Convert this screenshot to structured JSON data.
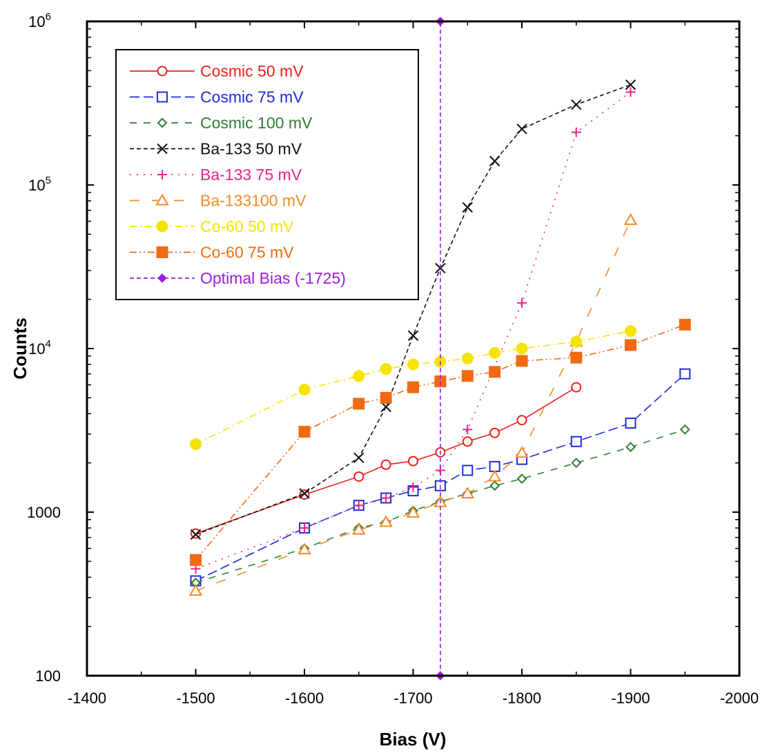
{
  "chart_data": {
    "type": "line",
    "xlabel": "Bias (V)",
    "ylabel": "Counts",
    "x_ticks": [
      "-1400",
      "-1500",
      "-1600",
      "-1700",
      "-1800",
      "-1900",
      "-2000"
    ],
    "y_ticks": [
      {
        "base": "100",
        "exp": ""
      },
      {
        "base": "1000",
        "exp": ""
      },
      {
        "base": "10",
        "exp": "4"
      },
      {
        "base": "10",
        "exp": "5"
      },
      {
        "base": "10",
        "exp": "6"
      }
    ],
    "xlim": [
      -1400,
      -2000
    ],
    "ylim": [
      100,
      1000000
    ],
    "y_scale": "log",
    "grid": false,
    "legend_position": "top-left",
    "series": [
      {
        "name": "Cosmic 50 mV",
        "color": "#e8221a",
        "dash": "solid",
        "marker": "circle-open",
        "x": [
          -1500,
          -1600,
          -1650,
          -1675,
          -1700,
          -1725,
          -1750,
          -1775,
          -1800,
          -1850
        ],
        "y": [
          740,
          1280,
          1650,
          1950,
          2050,
          2320,
          2700,
          3050,
          3650,
          5800
        ]
      },
      {
        "name": "Cosmic 75 mV",
        "color": "#1f2bd8",
        "dash": "longdash",
        "marker": "square-open",
        "x": [
          -1500,
          -1600,
          -1650,
          -1675,
          -1700,
          -1725,
          -1750,
          -1775,
          -1800,
          -1850,
          -1900,
          -1950
        ],
        "y": [
          380,
          800,
          1100,
          1220,
          1350,
          1450,
          1800,
          1900,
          2100,
          2700,
          3500,
          7000
        ]
      },
      {
        "name": "Cosmic 100 mV",
        "color": "#2e7d32",
        "dash": "dashgap",
        "marker": "diamond-open",
        "x": [
          -1500,
          -1600,
          -1650,
          -1675,
          -1700,
          -1725,
          -1750,
          -1775,
          -1800,
          -1850,
          -1900,
          -1950
        ],
        "y": [
          370,
          600,
          800,
          870,
          1020,
          1160,
          1300,
          1450,
          1600,
          2000,
          2500,
          3200
        ]
      },
      {
        "name": "Ba-133 50 mV",
        "color": "#111111",
        "dash": "shortdash",
        "marker": "x",
        "x": [
          -1500,
          -1600,
          -1650,
          -1675,
          -1700,
          -1725,
          -1750,
          -1775,
          -1800,
          -1850,
          -1900
        ],
        "y": [
          730,
          1300,
          2150,
          4400,
          12000,
          31000,
          73000,
          140000,
          220000,
          310000,
          410000
        ]
      },
      {
        "name": "Ba-133 75 mV",
        "color": "#ee2288",
        "dash": "dotted",
        "marker": "plus",
        "x": [
          -1500,
          -1600,
          -1650,
          -1675,
          -1700,
          -1725,
          -1750,
          -1800,
          -1850,
          -1900
        ],
        "y": [
          450,
          800,
          1100,
          1220,
          1420,
          1800,
          3200,
          19000,
          210000,
          370000
        ]
      },
      {
        "name": "Ba-133100 mV",
        "color": "#f08a28",
        "dash": "longgap",
        "marker": "triangle-open",
        "x": [
          -1500,
          -1600,
          -1650,
          -1675,
          -1700,
          -1725,
          -1750,
          -1775,
          -1800,
          -1850,
          -1900
        ],
        "y": [
          330,
          590,
          780,
          870,
          990,
          1150,
          1300,
          1650,
          2300,
          11000,
          61000
        ]
      },
      {
        "name": "Co-60 50 mV",
        "color": "#f5e400",
        "dash": "dashdot",
        "marker": "circle-filled",
        "x": [
          -1500,
          -1600,
          -1650,
          -1675,
          -1700,
          -1725,
          -1750,
          -1775,
          -1800,
          -1850,
          -1900
        ],
        "y": [
          2600,
          5600,
          6800,
          7500,
          8000,
          8300,
          8700,
          9400,
          10000,
          11000,
          12800
        ]
      },
      {
        "name": "Co-60 75 mV",
        "color": "#f06a12",
        "dash": "dashdotdot",
        "marker": "square-filled",
        "x": [
          -1500,
          -1600,
          -1650,
          -1675,
          -1700,
          -1725,
          -1750,
          -1775,
          -1800,
          -1850,
          -1900,
          -1950
        ],
        "y": [
          510,
          3100,
          4600,
          5000,
          5800,
          6300,
          6800,
          7200,
          8400,
          8800,
          10500,
          14000
        ]
      },
      {
        "name": "Optimal Bias (-1725)",
        "color": "#9a1ddb",
        "dash": "shortdash",
        "marker": "diamond-filled",
        "x": [
          -1725,
          -1725
        ],
        "y": [
          100,
          1000000
        ]
      }
    ]
  }
}
